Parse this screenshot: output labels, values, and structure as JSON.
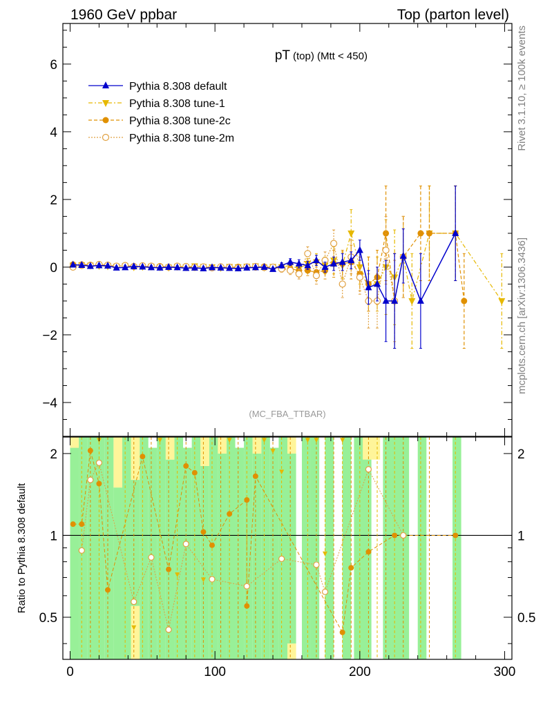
{
  "header": {
    "left": "1960 GeV ppbar",
    "right": "Top (parton level)"
  },
  "side_labels": {
    "rivet": "Rivet 3.1.10, ≥ 100k events",
    "mcplots": "mcplots.cern.ch [arXiv:1306.3436]"
  },
  "chart_data": {
    "type": "line",
    "title": "pT",
    "title_sub": "(top) (Mtt < 450)",
    "watermark": "(MC_FBA_TTBAR)",
    "ratio_ylabel": "Ratio to Pythia 8.308 default",
    "xlim": [
      -5,
      305
    ],
    "main_ylim": [
      -5,
      7.2
    ],
    "ratio_ylim": [
      0.35,
      2.3
    ],
    "main_yticks": [
      -4,
      -2,
      0,
      2,
      4,
      6
    ],
    "main_ytick_labels": [
      "−4",
      "−2",
      "0",
      "2",
      "4",
      "6"
    ],
    "ratio_yticks": [
      0.5,
      1,
      2
    ],
    "ratio_ytick_labels": [
      "0.5",
      "1",
      "2"
    ],
    "xticks": [
      0,
      100,
      200,
      300
    ],
    "xtick_labels": [
      "0",
      "100",
      "200",
      "300"
    ],
    "legend_position": "top-left",
    "series": [
      {
        "name": "Pythia 8.308 default",
        "color": "#0000cc",
        "marker": "triangle-up",
        "dash": "solid",
        "x": [
          2,
          8,
          14,
          20,
          26,
          32,
          38,
          44,
          50,
          56,
          62,
          68,
          74,
          80,
          86,
          92,
          98,
          104,
          110,
          116,
          122,
          128,
          134,
          140,
          146,
          152,
          158,
          164,
          170,
          176,
          182,
          188,
          194,
          200,
          206,
          212,
          218,
          224,
          230,
          242,
          266
        ],
        "y": [
          0.07,
          0.06,
          0.03,
          0.05,
          0.04,
          -0.02,
          -0.01,
          0.02,
          0.01,
          -0.01,
          -0.02,
          0.0,
          -0.01,
          -0.03,
          -0.02,
          -0.04,
          -0.01,
          -0.02,
          -0.03,
          -0.04,
          -0.02,
          -0.01,
          0.0,
          -0.06,
          0.05,
          0.15,
          0.1,
          0.05,
          0.2,
          0.0,
          0.1,
          0.15,
          0.2,
          0.5,
          -0.6,
          -0.5,
          -1.0,
          -1.0,
          0.33,
          -1.0,
          1.0
        ],
        "yerr": [
          0.05,
          0.05,
          0.05,
          0.05,
          0.05,
          0.05,
          0.05,
          0.05,
          0.05,
          0.05,
          0.05,
          0.05,
          0.05,
          0.05,
          0.05,
          0.05,
          0.05,
          0.05,
          0.05,
          0.05,
          0.05,
          0.05,
          0.05,
          0.05,
          0.08,
          0.1,
          0.12,
          0.12,
          0.15,
          0.15,
          0.2,
          0.25,
          0.25,
          0.3,
          0.5,
          0.5,
          1.2,
          1.4,
          0.8,
          1.4,
          1.4
        ]
      },
      {
        "name": "Pythia 8.308 tune-1",
        "color": "#e6b800",
        "marker": "triangle-down",
        "dash": "6,3,2,3",
        "x": [
          2,
          8,
          14,
          20,
          26,
          32,
          38,
          44,
          50,
          56,
          62,
          68,
          74,
          80,
          86,
          92,
          98,
          104,
          110,
          116,
          122,
          128,
          134,
          140,
          146,
          152,
          158,
          164,
          170,
          176,
          182,
          188,
          194,
          200,
          206,
          212,
          218,
          224,
          230,
          236,
          248,
          266,
          298
        ],
        "y": [
          0.05,
          0.06,
          0.05,
          0.04,
          0.03,
          0.02,
          0.03,
          0.0,
          0.01,
          0.02,
          0.0,
          -0.01,
          0.02,
          0.0,
          0.03,
          0.01,
          0.0,
          -0.02,
          0.01,
          0.0,
          0.02,
          0.03,
          -0.01,
          0.01,
          0.0,
          0.05,
          -0.05,
          0.1,
          0.15,
          0.05,
          0.2,
          0.05,
          1.0,
          0.0,
          -0.5,
          -0.5,
          0.0,
          -0.3,
          0.3,
          -1.0,
          1.0,
          1.0,
          -1.0
        ],
        "yerr": [
          0.05,
          0.05,
          0.05,
          0.05,
          0.05,
          0.05,
          0.05,
          0.05,
          0.05,
          0.05,
          0.05,
          0.05,
          0.05,
          0.05,
          0.05,
          0.05,
          0.05,
          0.05,
          0.05,
          0.05,
          0.05,
          0.05,
          0.05,
          0.05,
          0.1,
          0.12,
          0.15,
          0.15,
          0.25,
          0.25,
          0.4,
          0.4,
          0.7,
          0.5,
          0.8,
          0.8,
          1.4,
          1.4,
          1.2,
          1.4,
          1.4,
          1.4,
          1.4
        ]
      },
      {
        "name": "Pythia 8.308 tune-2c",
        "color": "#e09000",
        "marker": "circle",
        "dash": "5,3",
        "x": [
          2,
          8,
          14,
          20,
          26,
          32,
          38,
          44,
          50,
          56,
          62,
          68,
          74,
          80,
          86,
          92,
          98,
          104,
          110,
          116,
          122,
          128,
          134,
          140,
          146,
          152,
          158,
          164,
          170,
          176,
          182,
          188,
          194,
          200,
          206,
          212,
          218,
          224,
          230,
          242,
          248,
          266,
          272
        ],
        "y": [
          0.08,
          0.08,
          0.07,
          0.07,
          0.06,
          0.02,
          0.04,
          0.03,
          0.02,
          0.01,
          0.03,
          0.01,
          0.0,
          0.01,
          -0.02,
          0.0,
          -0.01,
          0.0,
          -0.02,
          0.01,
          -0.01,
          -0.01,
          0.02,
          -0.02,
          -0.01,
          -0.05,
          -0.1,
          -0.1,
          -0.15,
          -0.1,
          0.1,
          0.1,
          0.15,
          -0.2,
          -0.5,
          -0.3,
          1.0,
          -1.0,
          0.3,
          1.0,
          1.0,
          1.0,
          -1.0
        ],
        "yerr": [
          0.05,
          0.05,
          0.05,
          0.05,
          0.05,
          0.05,
          0.05,
          0.05,
          0.05,
          0.05,
          0.05,
          0.05,
          0.05,
          0.05,
          0.05,
          0.05,
          0.05,
          0.05,
          0.05,
          0.05,
          0.05,
          0.05,
          0.05,
          0.05,
          0.1,
          0.12,
          0.15,
          0.15,
          0.25,
          0.25,
          0.4,
          0.4,
          0.5,
          0.5,
          0.8,
          0.8,
          1.4,
          1.4,
          1.2,
          1.4,
          1.4,
          1.4,
          1.4
        ]
      },
      {
        "name": "Pythia 8.308 tune-2m",
        "color": "#e0a040",
        "marker": "circle-open",
        "dash": "2,2",
        "x": [
          2,
          8,
          14,
          20,
          26,
          32,
          38,
          44,
          50,
          56,
          62,
          68,
          74,
          80,
          86,
          92,
          98,
          104,
          110,
          116,
          122,
          128,
          134,
          140,
          146,
          152,
          158,
          164,
          170,
          176,
          182,
          188,
          194,
          200,
          206,
          212,
          218,
          224,
          230
        ],
        "y": [
          0.0,
          0.05,
          0.05,
          0.08,
          0.06,
          0.03,
          0.05,
          0.02,
          0.04,
          0.03,
          0.01,
          0.0,
          0.03,
          0.02,
          0.0,
          0.01,
          -0.02,
          0.01,
          0.0,
          -0.02,
          0.01,
          0.02,
          -0.01,
          0.0,
          -0.05,
          -0.1,
          -0.2,
          0.4,
          -0.25,
          0.2,
          0.7,
          -0.5,
          0.3,
          -0.3,
          -1.0,
          -1.0,
          0.5,
          -1.0,
          0.3
        ],
        "yerr": [
          0.05,
          0.05,
          0.05,
          0.05,
          0.05,
          0.05,
          0.05,
          0.05,
          0.05,
          0.05,
          0.05,
          0.05,
          0.05,
          0.05,
          0.05,
          0.05,
          0.05,
          0.05,
          0.05,
          0.05,
          0.05,
          0.05,
          0.05,
          0.05,
          0.1,
          0.12,
          0.15,
          0.2,
          0.25,
          0.25,
          0.4,
          0.4,
          0.5,
          0.5,
          0.8,
          0.8,
          1.0,
          1.2,
          1.2
        ]
      }
    ],
    "ratio_bands": [
      {
        "x0": 0,
        "x1": 6,
        "y0": 0.35,
        "y1": 2.1
      },
      {
        "x0": 6,
        "x1": 12,
        "y0": 0.35,
        "y1": 2.3
      },
      {
        "x0": 12,
        "x1": 24,
        "y0": 0.35,
        "y1": 2.3
      },
      {
        "x0": 24,
        "x1": 30,
        "y0": 0.35,
        "y1": 2.3
      },
      {
        "x0": 30,
        "x1": 36,
        "y0": 0.35,
        "y1": 1.5
      },
      {
        "x0": 36,
        "x1": 42,
        "y0": 0.35,
        "y1": 2.3
      },
      {
        "x0": 42,
        "x1": 48,
        "y0": 0.55,
        "y1": 1.6
      },
      {
        "x0": 48,
        "x1": 54,
        "y0": 0.35,
        "y1": 2.3
      },
      {
        "x0": 54,
        "x1": 60,
        "y0": 0.35,
        "y1": 2.1
      },
      {
        "x0": 60,
        "x1": 66,
        "y0": 0.35,
        "y1": 2.3
      },
      {
        "x0": 66,
        "x1": 72,
        "y0": 0.35,
        "y1": 1.9
      },
      {
        "x0": 72,
        "x1": 78,
        "y0": 0.35,
        "y1": 2.3
      },
      {
        "x0": 78,
        "x1": 84,
        "y0": 0.35,
        "y1": 2.1
      },
      {
        "x0": 84,
        "x1": 90,
        "y0": 0.35,
        "y1": 2.3
      },
      {
        "x0": 90,
        "x1": 96,
        "y0": 0.35,
        "y1": 1.8
      },
      {
        "x0": 96,
        "x1": 102,
        "y0": 0.35,
        "y1": 2.3
      },
      {
        "x0": 102,
        "x1": 108,
        "y0": 0.35,
        "y1": 2.0
      },
      {
        "x0": 108,
        "x1": 114,
        "y0": 0.35,
        "y1": 2.3
      },
      {
        "x0": 114,
        "x1": 120,
        "y0": 0.35,
        "y1": 2.1
      },
      {
        "x0": 120,
        "x1": 126,
        "y0": 0.35,
        "y1": 2.3
      },
      {
        "x0": 126,
        "x1": 132,
        "y0": 0.35,
        "y1": 2.0
      },
      {
        "x0": 132,
        "x1": 138,
        "y0": 0.35,
        "y1": 2.3
      },
      {
        "x0": 138,
        "x1": 144,
        "y0": 0.35,
        "y1": 2.1
      },
      {
        "x0": 144,
        "x1": 150,
        "y0": 0.35,
        "y1": 2.3
      },
      {
        "x0": 150,
        "x1": 156,
        "y0": 0.4,
        "y1": 2.0
      },
      {
        "x0": 160,
        "x1": 166,
        "y0": 0.35,
        "y1": 2.3
      },
      {
        "x0": 166,
        "x1": 172,
        "y0": 0.35,
        "y1": 2.3
      },
      {
        "x0": 176,
        "x1": 182,
        "y0": 0.35,
        "y1": 2.3
      },
      {
        "x0": 188,
        "x1": 194,
        "y0": 0.35,
        "y1": 2.3
      },
      {
        "x0": 196,
        "x1": 208,
        "y0": 0.35,
        "y1": 2.3
      },
      {
        "x0": 216,
        "x1": 222,
        "y0": 0.35,
        "y1": 2.3
      },
      {
        "x0": 222,
        "x1": 234,
        "y0": 0.35,
        "y1": 2.3
      },
      {
        "x0": 240,
        "x1": 246,
        "y0": 0.35,
        "y1": 2.3
      },
      {
        "x0": 264,
        "x1": 270,
        "y0": 0.35,
        "y1": 2.3
      }
    ],
    "ratio_yellow": [
      {
        "x0": 0,
        "x1": 6,
        "y0": 2.1,
        "y1": 2.3
      },
      {
        "x0": 30,
        "x1": 36,
        "y0": 1.5,
        "y1": 2.3
      },
      {
        "x0": 42,
        "x1": 48,
        "y0": 0.35,
        "y1": 0.55
      },
      {
        "x0": 42,
        "x1": 48,
        "y0": 1.6,
        "y1": 2.3
      },
      {
        "x0": 66,
        "x1": 72,
        "y0": 1.9,
        "y1": 2.3
      },
      {
        "x0": 90,
        "x1": 96,
        "y0": 1.8,
        "y1": 2.3
      },
      {
        "x0": 102,
        "x1": 108,
        "y0": 2.0,
        "y1": 2.3
      },
      {
        "x0": 126,
        "x1": 132,
        "y0": 2.0,
        "y1": 2.3
      },
      {
        "x0": 150,
        "x1": 156,
        "y0": 2.0,
        "y1": 2.3
      },
      {
        "x0": 150,
        "x1": 156,
        "y0": 0.35,
        "y1": 0.4
      },
      {
        "x0": 202,
        "x1": 214,
        "y0": 1.9,
        "y1": 2.3
      }
    ],
    "ratio_points": [
      {
        "x": 2,
        "y": 1.1,
        "s": 2
      },
      {
        "x": 8,
        "y": 1.1,
        "s": 2
      },
      {
        "x": 8,
        "y": 0.88,
        "s": 3
      },
      {
        "x": 14,
        "y": 2.05,
        "s": 2
      },
      {
        "x": 14,
        "y": 1.6,
        "s": 3
      },
      {
        "x": 20,
        "y": 1.55,
        "s": 2
      },
      {
        "x": 20,
        "y": 1.85,
        "s": 3
      },
      {
        "x": 26,
        "y": 0.63,
        "s": 2
      },
      {
        "x": 44,
        "y": 0.57,
        "s": 3
      },
      {
        "x": 50,
        "y": 1.95,
        "s": 2
      },
      {
        "x": 56,
        "y": 0.83,
        "s": 3
      },
      {
        "x": 68,
        "y": 0.75,
        "s": 2
      },
      {
        "x": 68,
        "y": 0.45,
        "s": 3
      },
      {
        "x": 80,
        "y": 1.8,
        "s": 2
      },
      {
        "x": 80,
        "y": 0.93,
        "s": 3
      },
      {
        "x": 86,
        "y": 1.7,
        "s": 2
      },
      {
        "x": 92,
        "y": 1.03,
        "s": 2
      },
      {
        "x": 98,
        "y": 0.92,
        "s": 2
      },
      {
        "x": 98,
        "y": 0.69,
        "s": 3
      },
      {
        "x": 110,
        "y": 1.2,
        "s": 2
      },
      {
        "x": 122,
        "y": 1.35,
        "s": 2
      },
      {
        "x": 122,
        "y": 0.55,
        "s": 2
      },
      {
        "x": 122,
        "y": 0.65,
        "s": 3
      },
      {
        "x": 128,
        "y": 1.65,
        "s": 2
      },
      {
        "x": 146,
        "y": 0.82,
        "s": 3
      },
      {
        "x": 170,
        "y": 0.78,
        "s": 3
      },
      {
        "x": 176,
        "y": 0.62,
        "s": 3
      },
      {
        "x": 188,
        "y": 0.44,
        "s": 2
      },
      {
        "x": 194,
        "y": 0.76,
        "s": 2
      },
      {
        "x": 206,
        "y": 1.75,
        "s": 3
      },
      {
        "x": 206,
        "y": 0.87,
        "s": 2
      },
      {
        "x": 224,
        "y": 1.0,
        "s": 2
      },
      {
        "x": 230,
        "y": 1.0,
        "s": 3
      },
      {
        "x": 266,
        "y": 1.0,
        "s": 2
      }
    ]
  }
}
